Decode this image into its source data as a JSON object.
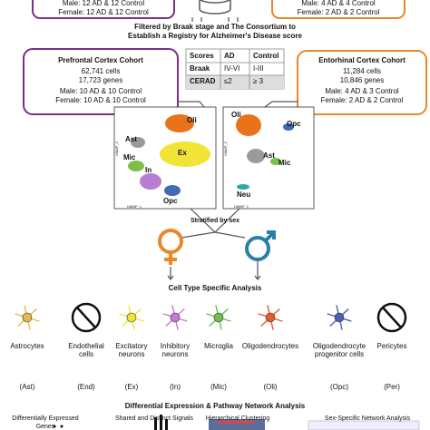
{
  "cohorts": {
    "top_left": {
      "male": "Male: 12 AD & 12 Control",
      "female": "Female: 12 AD & 12 Control"
    },
    "top_right": {
      "male": "Male: 4 AD & 4 Control",
      "female": "Female: 2 AD & 2 Control"
    },
    "prefrontal": {
      "title": "Prefrontal Cortex Cohort",
      "cells": "62,741 cells",
      "genes": "17,723 genes",
      "male": "Male: 10 AD & 10 Control",
      "female": "Female: 10 AD & 10 Control"
    },
    "entorhinal": {
      "title": "Entorhinal Cortex Cohort",
      "cells": "11,284 cells",
      "genes": "10,846 genes",
      "male": "Male: 4 AD & 3 Control",
      "female": "Female: 2 AD & 2 Control"
    }
  },
  "filter_text": [
    "Filtered by Braak stage and The Consortium to",
    "Establish a Registry for Alzheimer's Disease score"
  ],
  "criteria_table": {
    "header": [
      "Scores",
      "AD",
      "Control"
    ],
    "rows": [
      [
        "Braak",
        "IV-VI",
        "I-III"
      ],
      [
        "CERAD",
        "≤2",
        "≥ 3"
      ]
    ]
  },
  "umap": {
    "x_label": "UMAP_1",
    "y_label": "UMAP_2",
    "prefrontal_clusters": [
      "Oli",
      "Ast",
      "Ex",
      "Mic",
      "In",
      "Opc"
    ],
    "entorhinal_clusters": [
      "Opc",
      "Oli",
      "Ast",
      "Mic",
      "Neu"
    ]
  },
  "stratify_label": "Stratified by sex",
  "cell_analysis_title": "Cell Type Specific Analysis",
  "cell_types": [
    {
      "name": [
        "Astrocytes"
      ],
      "abbrev": "(Ast)"
    },
    {
      "name": [
        "Endothelial",
        "cells"
      ],
      "abbrev": "(End)"
    },
    {
      "name": [
        "Excitatory",
        "neurons"
      ],
      "abbrev": "(Ex)"
    },
    {
      "name": [
        "Inhibitory",
        "neurons"
      ],
      "abbrev": "(In)"
    },
    {
      "name": [
        "Microglia"
      ],
      "abbrev": "(Mic)"
    },
    {
      "name": [
        "Oligodendrocytes"
      ],
      "abbrev": "(Oli)"
    },
    {
      "name": [
        "Oligodendrocyte",
        "progenitor cells"
      ],
      "abbrev": "(Opc)"
    },
    {
      "name": [
        "Pericytes"
      ],
      "abbrev": "(Per)"
    }
  ],
  "analysis_title": "Differential Expression & Pathway Network Analysis",
  "panels": [
    [
      "Differentially Expressed",
      "Genes"
    ],
    [
      "Shared and Distinct Signals"
    ],
    [
      "Hierarchical Clustering"
    ],
    [
      "Sex-Specific Network Analysis"
    ]
  ]
}
